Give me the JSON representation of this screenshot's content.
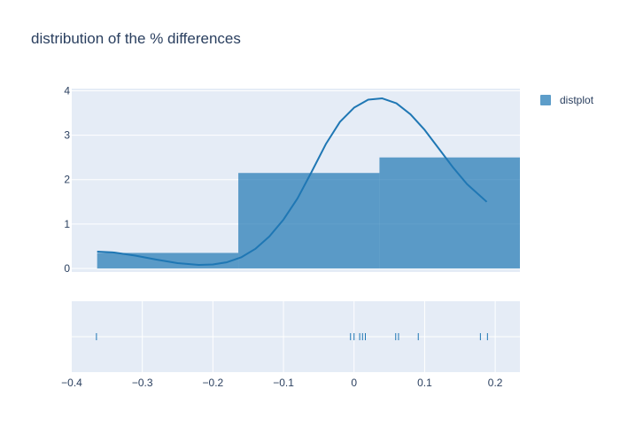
{
  "chart_data": {
    "type": "distplot",
    "title": "distribution of the % differences",
    "xlabel": "",
    "ylabel": "",
    "xlim": [
      -0.4,
      0.235
    ],
    "ylim": [
      -0.08,
      4.05
    ],
    "x_ticks": [
      -0.4,
      -0.3,
      -0.2,
      -0.1,
      0,
      0.1,
      0.2
    ],
    "x_tick_labels": [
      "−0.4",
      "−0.3",
      "−0.2",
      "−0.1",
      "0",
      "0.1",
      "0.2"
    ],
    "y_ticks": [
      0,
      1,
      2,
      3,
      4
    ],
    "y_tick_labels": [
      "0",
      "1",
      "2",
      "3",
      "4"
    ],
    "grid": true,
    "legend_position": "top-right",
    "series": [
      {
        "name": "distplot",
        "color": "#1f77b4",
        "histogram": {
          "bins": [
            {
              "start": -0.364,
              "end": -0.164,
              "density": 0.35
            },
            {
              "start": -0.164,
              "end": 0.036,
              "density": 2.15
            },
            {
              "start": 0.036,
              "end": 0.236,
              "density": 2.5
            }
          ]
        },
        "kde": {
          "x": [
            -0.364,
            -0.34,
            -0.31,
            -0.28,
            -0.25,
            -0.22,
            -0.2,
            -0.18,
            -0.16,
            -0.14,
            -0.12,
            -0.1,
            -0.08,
            -0.06,
            -0.04,
            -0.02,
            0.0,
            0.02,
            0.04,
            0.06,
            0.08,
            0.1,
            0.12,
            0.14,
            0.16,
            0.188
          ],
          "y": [
            0.38,
            0.36,
            0.29,
            0.2,
            0.12,
            0.08,
            0.09,
            0.14,
            0.25,
            0.44,
            0.72,
            1.1,
            1.58,
            2.18,
            2.8,
            3.3,
            3.62,
            3.8,
            3.83,
            3.72,
            3.47,
            3.12,
            2.7,
            2.28,
            1.9,
            1.5
          ]
        },
        "rug": [
          -0.365,
          -0.005,
          0.0,
          0.008,
          0.012,
          0.016,
          0.059,
          0.063,
          0.091,
          0.179,
          0.189
        ]
      }
    ]
  }
}
